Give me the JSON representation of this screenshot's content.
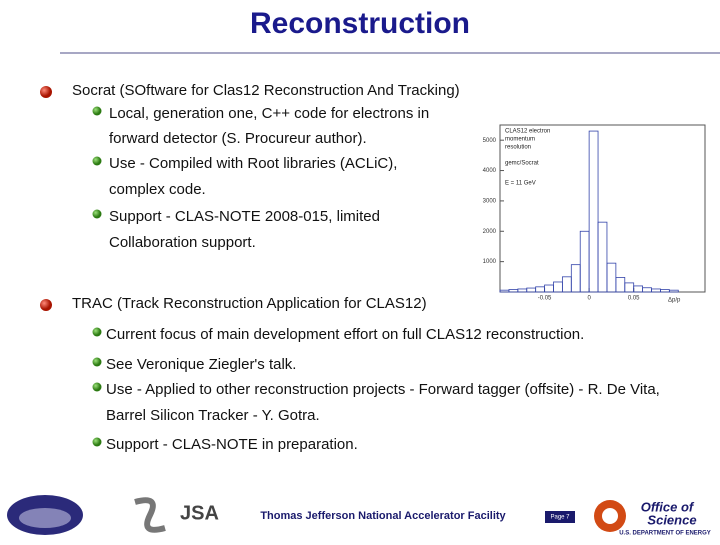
{
  "header": {
    "title": "Reconstruction"
  },
  "sections": [
    {
      "text": "Socrat (SOftware for Clas12 Reconstruction And Tracking)",
      "items": [
        [
          "Local, generation one, C++ code for electrons in",
          "forward detector (S. Procureur author)."
        ],
        [
          "Use - Compiled with Root libraries (ACLiC),",
          "complex code."
        ],
        [
          "Support - CLAS-NOTE 2008-015, limited",
          "Collaboration support."
        ]
      ]
    },
    {
      "text": "TRAC (Track Reconstruction Application for CLAS12)",
      "items": [
        [
          "Current focus of main development effort on full CLAS12 reconstruction."
        ],
        [
          "See Veronique Ziegler's talk."
        ],
        [
          "Use - Applied to other reconstruction projects - Forward tagger (offsite) - R. De Vita,",
          "Barrel Silicon Tracker - Y. Gotra."
        ],
        [
          "Support - CLAS-NOTE in preparation."
        ]
      ]
    }
  ],
  "plot": {
    "type": "histogram",
    "legend": [
      "CLAS12 electron",
      "momentum",
      "resolution",
      "gemc/Socrat",
      "E = 11 GeV"
    ],
    "x_label": "Δp/p",
    "bins": [
      -0.1,
      -0.09,
      -0.08,
      -0.07,
      -0.06,
      -0.05,
      -0.04,
      -0.03,
      -0.02,
      -0.01,
      0,
      0.01,
      0.02,
      0.03,
      0.04,
      0.05,
      0.06,
      0.07,
      0.08,
      0.09,
      0.1
    ],
    "values": [
      60,
      80,
      100,
      130,
      170,
      230,
      330,
      500,
      900,
      2000,
      5300,
      2300,
      950,
      480,
      300,
      200,
      140,
      100,
      80,
      60
    ],
    "color": "#3344aa",
    "xlim": [
      -0.1,
      0.13
    ],
    "ylim": [
      0,
      5500
    ],
    "xticks": [
      -0.05,
      0,
      0.05
    ],
    "yticks": [
      1000,
      2000,
      3000,
      4000,
      5000
    ]
  },
  "footer": {
    "center": "Thomas Jefferson National Accelerator Facility",
    "page": "Page 7",
    "jsa": "JSA",
    "office": "Office of",
    "science": "Science",
    "doe": "U.S. DEPARTMENT OF ENERGY"
  }
}
